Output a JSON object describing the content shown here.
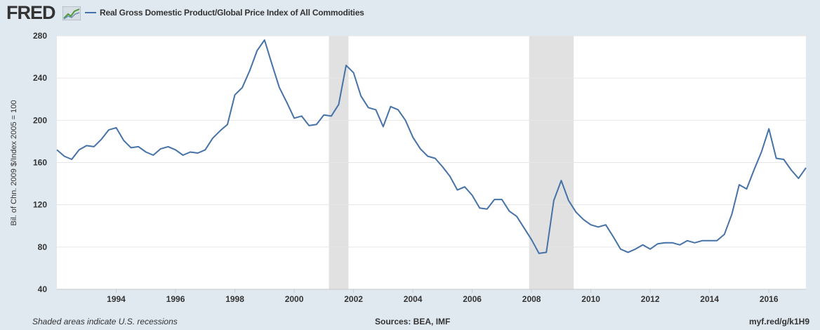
{
  "header": {
    "logo_text": "FRED",
    "legend_label": "Real Gross Domestic Product/Global Price Index of All Commodities"
  },
  "footer": {
    "note": "Shaded areas indicate U.S. recessions",
    "sources": "Sources: BEA, IMF",
    "url": "myf.red/g/k1H9"
  },
  "colors": {
    "background": "#e1e9f0",
    "plot": "#ffffff",
    "series": "#4572a7",
    "recession": "#e1e1e1",
    "grid": "#e6e6e6"
  },
  "chart_data": {
    "type": "line",
    "title": "",
    "xlabel": "",
    "ylabel": "Bil. of Chn. 2009 $/Index 2005 = 100",
    "xlim": [
      1992.0,
      2017.25
    ],
    "ylim": [
      40,
      280
    ],
    "yticks": [
      40,
      80,
      120,
      160,
      200,
      240,
      280
    ],
    "xticks": [
      1994,
      1996,
      1998,
      2000,
      2002,
      2004,
      2006,
      2008,
      2010,
      2012,
      2014,
      2016
    ],
    "grid": true,
    "legend": "top-left",
    "recessions": [
      [
        2001.17,
        2001.83
      ],
      [
        2007.92,
        2009.42
      ]
    ],
    "series": [
      {
        "name": "Real Gross Domestic Product/Global Price Index of All Commodities",
        "x": [
          1992.0,
          1992.25,
          1992.5,
          1992.75,
          1993.0,
          1993.25,
          1993.5,
          1993.75,
          1994.0,
          1994.25,
          1994.5,
          1994.75,
          1995.0,
          1995.25,
          1995.5,
          1995.75,
          1996.0,
          1996.25,
          1996.5,
          1996.75,
          1997.0,
          1997.25,
          1997.5,
          1997.75,
          1998.0,
          1998.25,
          1998.5,
          1998.75,
          1999.0,
          1999.25,
          1999.5,
          1999.75,
          2000.0,
          2000.25,
          2000.5,
          2000.75,
          2001.0,
          2001.25,
          2001.5,
          2001.75,
          2002.0,
          2002.25,
          2002.5,
          2002.75,
          2003.0,
          2003.25,
          2003.5,
          2003.75,
          2004.0,
          2004.25,
          2004.5,
          2004.75,
          2005.0,
          2005.25,
          2005.5,
          2005.75,
          2006.0,
          2006.25,
          2006.5,
          2006.75,
          2007.0,
          2007.25,
          2007.5,
          2007.75,
          2008.0,
          2008.25,
          2008.5,
          2008.75,
          2009.0,
          2009.25,
          2009.5,
          2009.75,
          2010.0,
          2010.25,
          2010.5,
          2010.75,
          2011.0,
          2011.25,
          2011.5,
          2011.75,
          2012.0,
          2012.25,
          2012.5,
          2012.75,
          2013.0,
          2013.25,
          2013.5,
          2013.75,
          2014.0,
          2014.25,
          2014.5,
          2014.75,
          2015.0,
          2015.25,
          2015.5,
          2015.75,
          2016.0,
          2016.25,
          2016.5,
          2016.75,
          2017.0,
          2017.25
        ],
        "values": [
          172,
          166,
          163,
          172,
          176,
          175,
          182,
          191,
          193,
          181,
          174,
          175,
          170,
          167,
          173,
          175,
          172,
          167,
          170,
          169,
          172,
          183,
          190,
          196,
          224,
          231,
          247,
          266,
          276,
          253,
          231,
          217,
          202,
          204,
          195,
          196,
          205,
          204,
          215,
          252,
          245,
          223,
          212,
          210,
          194,
          213,
          210,
          200,
          184,
          173,
          166,
          164,
          156,
          147,
          134,
          137,
          129,
          117,
          116,
          125,
          125,
          114,
          109,
          98,
          87,
          74,
          75,
          124,
          143,
          124,
          113,
          106,
          101,
          99,
          101,
          90,
          78,
          75,
          78,
          82,
          78,
          83,
          84,
          84,
          82,
          86,
          84,
          86,
          86,
          86,
          92,
          111,
          139,
          135,
          153,
          170,
          192,
          164,
          163,
          153,
          145,
          155
        ]
      }
    ]
  }
}
